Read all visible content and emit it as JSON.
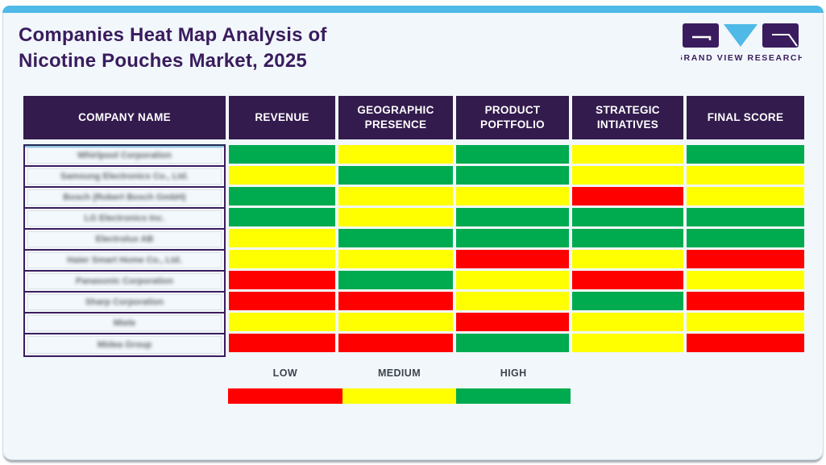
{
  "page": {
    "title_line1": "Companies Heat Map Analysis of",
    "title_line2": "Nicotine Pouches Market, 2025",
    "logo_text": "GRAND VIEW RESEARCH"
  },
  "table": {
    "headers": [
      "COMPANY NAME",
      "REVENUE",
      "GEOGRAPHIC PRESENCE",
      "PRODUCT POFTFOLIO",
      "STRATEGIC INTIATIVES",
      "FINAL SCORE"
    ]
  },
  "legend": {
    "labels": [
      "LOW",
      "MEDIUM",
      "HIGH"
    ],
    "colors": [
      "#ff0000",
      "#ffff00",
      "#00ab50"
    ]
  },
  "colors": {
    "low": "#ff0000",
    "medium": "#ffff00",
    "high": "#00ab50",
    "header_bg": "#331b4d",
    "title_purple": "#3a1c5e",
    "accent_blue": "#4fb9e8"
  },
  "chart_data": {
    "type": "heatmap",
    "title": "Companies Heat Map Analysis of Nicotine Pouches Market, 2025",
    "columns": [
      "REVENUE",
      "GEOGRAPHIC PRESENCE",
      "PRODUCT POFTFOLIO",
      "STRATEGIC INTIATIVES",
      "FINAL SCORE"
    ],
    "value_scale": {
      "low": "red",
      "medium": "yellow",
      "high": "green"
    },
    "legend": [
      "LOW",
      "MEDIUM",
      "HIGH"
    ],
    "rows": [
      {
        "company": "Whirlpool Corporation",
        "values": [
          "high",
          "medium",
          "high",
          "medium",
          "high"
        ]
      },
      {
        "company": "Samsung Electronics Co., Ltd.",
        "values": [
          "medium",
          "high",
          "high",
          "medium",
          "medium"
        ]
      },
      {
        "company": "Bosch (Robert Bosch GmbH)",
        "values": [
          "high",
          "medium",
          "medium",
          "low",
          "medium"
        ]
      },
      {
        "company": "LG Electronics Inc.",
        "values": [
          "high",
          "medium",
          "high",
          "high",
          "high"
        ]
      },
      {
        "company": "Electrolux AB",
        "values": [
          "medium",
          "high",
          "high",
          "high",
          "high"
        ]
      },
      {
        "company": "Haier Smart Home Co., Ltd.",
        "values": [
          "medium",
          "medium",
          "low",
          "medium",
          "low"
        ]
      },
      {
        "company": "Panasonic Corporation",
        "values": [
          "low",
          "high",
          "medium",
          "low",
          "medium"
        ]
      },
      {
        "company": "Sharp Corporation",
        "values": [
          "low",
          "low",
          "medium",
          "high",
          "low"
        ]
      },
      {
        "company": "Miele",
        "values": [
          "medium",
          "medium",
          "low",
          "medium",
          "medium"
        ]
      },
      {
        "company": "Midea Group",
        "values": [
          "low",
          "low",
          "high",
          "medium",
          "low"
        ]
      }
    ]
  }
}
